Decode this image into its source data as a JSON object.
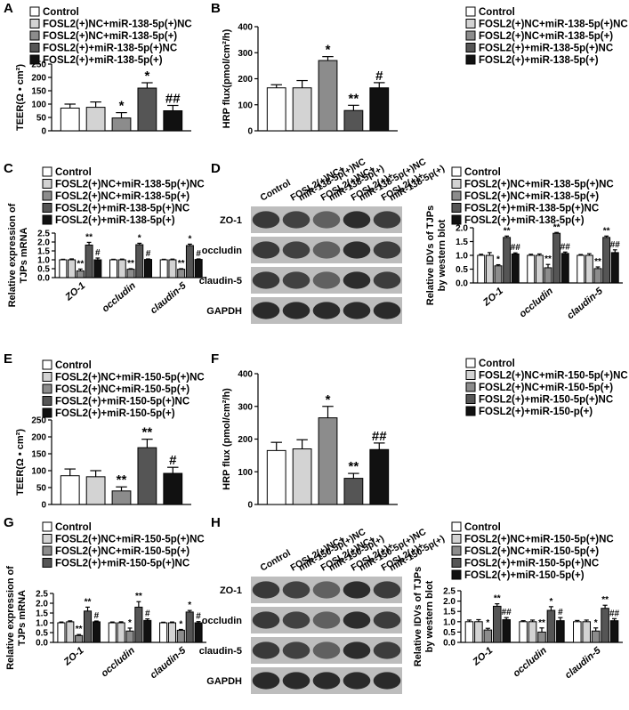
{
  "chart_data": [
    {
      "type": "bar",
      "panel": "A",
      "ylabel": [
        "TEER(Ω • cm²)"
      ],
      "categories": [
        null
      ],
      "ylim": [
        0,
        250
      ],
      "yticks": [
        0,
        50,
        100,
        150,
        200,
        250
      ],
      "series": [
        {
          "name": "Control",
          "color": "#ffffff",
          "values": [
            85
          ],
          "errors": [
            15
          ],
          "annotations": [
            null
          ]
        },
        {
          "name": "FOSL2(+)NC+miR-138-5p(+)NC",
          "color": "#d3d3d3",
          "values": [
            88
          ],
          "errors": [
            20
          ],
          "annotations": [
            null
          ]
        },
        {
          "name": "FOSL2(+)NC+miR-138-5p(+)",
          "color": "#8c8c8c",
          "values": [
            48
          ],
          "errors": [
            20
          ],
          "annotations": [
            "*"
          ]
        },
        {
          "name": "FOSL2(+)+miR-138-5p(+)NC",
          "color": "#555555",
          "values": [
            160
          ],
          "errors": [
            20
          ],
          "annotations": [
            "*"
          ]
        },
        {
          "name": "FOSL2(+)+miR-138-5p(+)",
          "color": "#111111",
          "values": [
            75
          ],
          "errors": [
            20
          ],
          "annotations": [
            "##"
          ]
        }
      ]
    },
    {
      "type": "bar",
      "panel": "B",
      "ylabel": [
        "HRP flux(pmol/cm²/h)"
      ],
      "categories": [
        null
      ],
      "ylim": [
        0,
        400
      ],
      "yticks": [
        0,
        100,
        200,
        300,
        400
      ],
      "series": [
        {
          "name": "Control",
          "color": "#ffffff",
          "values": [
            165
          ],
          "errors": [
            12
          ],
          "annotations": [
            null
          ]
        },
        {
          "name": "FOSL2(+)NC+miR-138-5p(+)NC",
          "color": "#d3d3d3",
          "values": [
            165
          ],
          "errors": [
            28
          ],
          "annotations": [
            null
          ]
        },
        {
          "name": "FOSL2(+)NC+miR-138-5p(+)",
          "color": "#8c8c8c",
          "values": [
            270
          ],
          "errors": [
            15
          ],
          "annotations": [
            "*"
          ]
        },
        {
          "name": "FOSL2(+)+miR-138-5p(+)NC",
          "color": "#555555",
          "values": [
            78
          ],
          "errors": [
            20
          ],
          "annotations": [
            "**"
          ]
        },
        {
          "name": "FOSL2(+)+miR-138-5p(+)",
          "color": "#111111",
          "values": [
            165
          ],
          "errors": [
            20
          ],
          "annotations": [
            "#"
          ]
        }
      ]
    },
    {
      "type": "bar",
      "panel": "C",
      "ylabel": [
        "Relative expression of",
        "TJPs mRNA"
      ],
      "categories": [
        "ZO-1",
        "occludin",
        "claudin-5"
      ],
      "ylim": [
        0,
        2.5
      ],
      "yticks": [
        {
          "value": 0,
          "label": "0.0"
        },
        0.5,
        {
          "value": 1,
          "label": "1.0"
        },
        1.5,
        {
          "value": 2,
          "label": "2.0"
        },
        2.5
      ],
      "series": [
        {
          "name": "Control",
          "color": "#ffffff",
          "values": [
            1.0,
            1.0,
            1.0
          ],
          "errors": [
            0.03,
            0.03,
            0.03
          ],
          "annotations": [
            null,
            null,
            null
          ]
        },
        {
          "name": "FOSL2(+)NC+miR-138-5p(+)NC",
          "color": "#d3d3d3",
          "values": [
            1.0,
            1.0,
            1.0
          ],
          "errors": [
            0.05,
            0.04,
            0.04
          ],
          "annotations": [
            null,
            null,
            null
          ]
        },
        {
          "name": "FOSL2(+)NC+miR-138-5p(+)",
          "color": "#8c8c8c",
          "values": [
            0.38,
            0.47,
            0.47
          ],
          "errors": [
            0.1,
            0.03,
            0.03
          ],
          "annotations": [
            "**",
            "**",
            "**"
          ]
        },
        {
          "name": "FOSL2(+)+miR-138-5p(+)NC",
          "color": "#555555",
          "values": [
            1.83,
            1.85,
            1.8
          ],
          "errors": [
            0.15,
            0.08,
            0.08
          ],
          "annotations": [
            "**",
            "*",
            "*"
          ]
        },
        {
          "name": "FOSL2(+)+miR-138-5p(+)",
          "color": "#111111",
          "values": [
            1.0,
            1.02,
            1.02
          ],
          "errors": [
            0.1,
            0.03,
            0.03
          ],
          "annotations": [
            "#",
            "#",
            "#"
          ]
        }
      ]
    },
    {
      "type": "bar",
      "panel": "D",
      "ylabel": [
        "Relative IDVs of TJPs",
        "by western blot"
      ],
      "categories": [
        "ZO-1",
        "occludin",
        "claudin-5"
      ],
      "ylim": [
        0,
        2.0
      ],
      "yticks": [
        {
          "value": 0,
          "label": "0.0"
        },
        0.5,
        {
          "value": 1,
          "label": "1.0"
        },
        1.5,
        {
          "value": 2,
          "label": "2.0"
        }
      ],
      "blot": {
        "lanes": [
          [
            "Control"
          ],
          [
            "FOSL2(+)NC+",
            "miR-138-5p(+)NC"
          ],
          [
            "FOSL2(+)NC+",
            "miR-138-5p(+)"
          ],
          [
            "FOSL2(+)+",
            "miR-138-5p(+)NC"
          ],
          [
            "FOSL2(+)+",
            "miR-138-5p(+)"
          ]
        ],
        "rows": [
          "ZO-1",
          "occludin",
          "claudin-5",
          "GAPDH"
        ]
      },
      "series": [
        {
          "name": "Control",
          "color": "#ffffff",
          "values": [
            1.0,
            1.0,
            1.0
          ],
          "errors": [
            0.04,
            0.04,
            0.03
          ],
          "annotations": [
            null,
            null,
            null
          ]
        },
        {
          "name": "FOSL2(+)NC+miR-138-5p(+)NC",
          "color": "#d3d3d3",
          "values": [
            1.0,
            1.0,
            1.0
          ],
          "errors": [
            0.1,
            0.05,
            0.06
          ],
          "annotations": [
            null,
            null,
            null
          ]
        },
        {
          "name": "FOSL2(+)NC+miR-138-5p(+)",
          "color": "#8c8c8c",
          "values": [
            0.62,
            0.55,
            0.52
          ],
          "errors": [
            0.04,
            0.12,
            0.06
          ],
          "annotations": [
            "*",
            "**",
            "**"
          ]
        },
        {
          "name": "FOSL2(+)+miR-138-5p(+)NC",
          "color": "#555555",
          "values": [
            1.65,
            1.8,
            1.65
          ],
          "errors": [
            0.05,
            0.03,
            0.05
          ],
          "annotations": [
            "**",
            "**",
            "**"
          ]
        },
        {
          "name": "FOSL2(+)+miR-138-5p(+)",
          "color": "#111111",
          "values": [
            1.05,
            1.07,
            1.1
          ],
          "errors": [
            0.04,
            0.05,
            0.1
          ],
          "annotations": [
            "##",
            "##",
            "##"
          ]
        }
      ]
    },
    {
      "type": "bar",
      "panel": "E",
      "ylabel": [
        "TEER(Ω • cm²)"
      ],
      "categories": [
        null
      ],
      "ylim": [
        0,
        250
      ],
      "yticks": [
        0,
        50,
        100,
        150,
        200,
        250
      ],
      "series": [
        {
          "name": "Control",
          "color": "#ffffff",
          "values": [
            85
          ],
          "errors": [
            20
          ],
          "annotations": [
            null
          ]
        },
        {
          "name": "FOSL2(+)NC+miR-150-5p(+)NC",
          "color": "#d3d3d3",
          "values": [
            82
          ],
          "errors": [
            18
          ],
          "annotations": [
            null
          ]
        },
        {
          "name": "FOSL2(+)NC+miR-150-5p(+)",
          "color": "#8c8c8c",
          "values": [
            40
          ],
          "errors": [
            12
          ],
          "annotations": [
            "**"
          ]
        },
        {
          "name": "FOSL2(+)+miR-150-5p(+)NC",
          "color": "#555555",
          "values": [
            168
          ],
          "errors": [
            25
          ],
          "annotations": [
            "**"
          ]
        },
        {
          "name": "FOSL2(+)+miR-150-5p(+)",
          "color": "#111111",
          "values": [
            92
          ],
          "errors": [
            18
          ],
          "annotations": [
            "#"
          ]
        }
      ]
    },
    {
      "type": "bar",
      "panel": "F",
      "ylabel": [
        "HRP flux (pmol/cm²/h)"
      ],
      "categories": [
        null
      ],
      "ylim": [
        0,
        400
      ],
      "yticks": [
        0,
        100,
        200,
        300,
        400
      ],
      "series": [
        {
          "name": "Control",
          "color": "#ffffff",
          "values": [
            165
          ],
          "errors": [
            25
          ],
          "annotations": [
            null
          ]
        },
        {
          "name": "FOSL2(+)NC+miR-150-5p(+)NC",
          "color": "#d3d3d3",
          "values": [
            170
          ],
          "errors": [
            28
          ],
          "annotations": [
            null
          ]
        },
        {
          "name": "FOSL2(+)NC+miR-150-5p(+)",
          "color": "#8c8c8c",
          "values": [
            265
          ],
          "errors": [
            35
          ],
          "annotations": [
            "*"
          ]
        },
        {
          "name": "FOSL2(+)+miR-150-5p(+)NC",
          "color": "#555555",
          "values": [
            80
          ],
          "errors": [
            15
          ],
          "annotations": [
            "**"
          ]
        },
        {
          "name": "FOSL2(+)+miR-150-p(+)",
          "color": "#111111",
          "values": [
            168
          ],
          "errors": [
            20
          ],
          "annotations": [
            "##"
          ]
        }
      ]
    },
    {
      "type": "bar",
      "panel": "G",
      "ylabel": [
        "Relative expression of",
        "TJPs mRNA"
      ],
      "categories": [
        "ZO-1",
        "occludin",
        "claudin-5"
      ],
      "ylim": [
        0,
        2.5
      ],
      "yticks": [
        {
          "value": 0,
          "label": "0.0"
        },
        0.5,
        {
          "value": 1,
          "label": "1.0"
        },
        1.5,
        {
          "value": 2,
          "label": "2.0"
        },
        2.5
      ],
      "series": [
        {
          "name": "Control",
          "color": "#ffffff",
          "values": [
            1.0,
            1.0,
            1.0
          ],
          "errors": [
            0.04,
            0.04,
            0.03
          ],
          "annotations": [
            null,
            null,
            null
          ]
        },
        {
          "name": "FOSL2(+)NC+miR-150-5p(+)NC",
          "color": "#d3d3d3",
          "values": [
            1.05,
            1.0,
            1.0
          ],
          "errors": [
            0.05,
            0.05,
            0.04
          ],
          "annotations": [
            null,
            null,
            null
          ]
        },
        {
          "name": "FOSL2(+)NC+miR-150-5p(+)",
          "color": "#8c8c8c",
          "values": [
            0.35,
            0.58,
            0.62
          ],
          "errors": [
            0.05,
            0.15,
            0.04
          ],
          "annotations": [
            "**",
            "*",
            "*"
          ]
        },
        {
          "name": "FOSL2(+)+miR-150-5p(+)NC",
          "color": "#555555",
          "values": [
            1.6,
            1.8,
            1.55
          ],
          "errors": [
            0.2,
            0.28,
            0.08
          ],
          "annotations": [
            "**",
            "**",
            "*"
          ]
        },
        {
          "name": null,
          "color": "#111111",
          "values": [
            1.05,
            1.12,
            1.0
          ],
          "errors": [
            0.04,
            0.08,
            0.06
          ],
          "annotations": [
            "#",
            "#",
            "#"
          ]
        }
      ]
    },
    {
      "type": "bar",
      "panel": "H",
      "ylabel": [
        "Relative IDVs of TJPs",
        "by western blot"
      ],
      "categories": [
        "ZO-1",
        "occludin",
        "claudin-5"
      ],
      "ylim": [
        0,
        2.5
      ],
      "yticks": [
        {
          "value": 0,
          "label": "0.0"
        },
        0.5,
        {
          "value": 1,
          "label": "1.0"
        },
        1.5,
        {
          "value": 2,
          "label": "2.0"
        },
        2.5
      ],
      "blot": {
        "lanes": [
          [
            "Control"
          ],
          [
            "FOSL2(+)NC+",
            "miR-150-5p(+)NC"
          ],
          [
            "FOSL2(+)NC+",
            "miR-150-5p(+)"
          ],
          [
            "FOSL2(+)+",
            "miR-150-5p(+)NC"
          ],
          [
            "FOSL2(+)+",
            "miR-150-5p(+)"
          ]
        ],
        "rows": [
          "ZO-1",
          "occludin",
          "claudin-5",
          "GAPDH"
        ]
      },
      "series": [
        {
          "name": "Control",
          "color": "#ffffff",
          "values": [
            1.0,
            1.0,
            1.0
          ],
          "errors": [
            0.08,
            0.05,
            0.06
          ],
          "annotations": [
            null,
            null,
            null
          ]
        },
        {
          "name": "FOSL2(+)NC+miR-150-5p(+)NC",
          "color": "#d3d3d3",
          "values": [
            1.0,
            1.0,
            1.0
          ],
          "errors": [
            0.1,
            0.08,
            0.08
          ],
          "annotations": [
            null,
            null,
            null
          ]
        },
        {
          "name": "FOSL2(+)NC+miR-150-5p(+)",
          "color": "#8c8c8c",
          "values": [
            0.6,
            0.5,
            0.55
          ],
          "errors": [
            0.08,
            0.2,
            0.15
          ],
          "annotations": [
            "*",
            "**",
            "*"
          ]
        },
        {
          "name": "FOSL2(+)+miR-150-5p(+)NC",
          "color": "#555555",
          "values": [
            1.75,
            1.55,
            1.65
          ],
          "errors": [
            0.12,
            0.18,
            0.15
          ],
          "annotations": [
            "**",
            "*",
            "**"
          ]
        },
        {
          "name": "FOSL2(+)+miR-150-5p(+)",
          "color": "#111111",
          "values": [
            1.1,
            1.05,
            1.05
          ],
          "errors": [
            0.1,
            0.15,
            0.1
          ],
          "annotations": [
            "##",
            "#",
            "##"
          ]
        }
      ]
    }
  ]
}
